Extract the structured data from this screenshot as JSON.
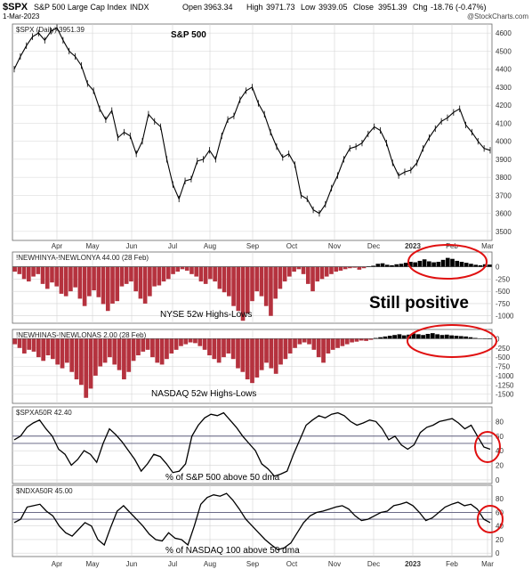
{
  "header": {
    "symbol": "$SPX",
    "description": "S&P 500 Large Cap Index",
    "exchange": "INDX",
    "date": "1-Mar-2023",
    "open_label": "Open",
    "open": "3963.34",
    "high_label": "High",
    "high": "3971.73",
    "low_label": "Low",
    "low": "3939.05",
    "close_label": "Close",
    "close": "3951.39",
    "chg_label": "Chg",
    "chg": "-18.76 (-0.47%)",
    "watermark": "@StockCharts.com"
  },
  "months": [
    "Apr",
    "May",
    "Jun",
    "Jul",
    "Aug",
    "Sep",
    "Oct",
    "Nov",
    "Dec",
    "2023",
    "Feb",
    "Mar"
  ],
  "annotations": {
    "still_positive": "Still positive"
  },
  "colors": {
    "price": "#000000",
    "bar_negative": "#b5323e",
    "bar_positive": "#000000",
    "circle": "#e01010",
    "grid": "#d4d4d4",
    "ref_line": "#5a5a7a"
  },
  "chart_data": [
    {
      "type": "line",
      "legend": "$SPX (Daily) 3951.39",
      "title": "S&P 500",
      "ylim": [
        3450,
        4650
      ],
      "yticks": [
        3500,
        3600,
        3700,
        3800,
        3900,
        4000,
        4100,
        4200,
        4300,
        4400,
        4500,
        4600
      ],
      "series": [
        {
          "values": [
            4400,
            4470,
            4530,
            4580,
            4600,
            4560,
            4610,
            4630,
            4560,
            4500,
            4470,
            4420,
            4320,
            4280,
            4180,
            4120,
            4170,
            4020,
            4050,
            4030,
            3930,
            4000,
            4150,
            4110,
            4080,
            3900,
            3760,
            3680,
            3780,
            3790,
            3890,
            3900,
            3950,
            3900,
            4030,
            4120,
            4140,
            4230,
            4280,
            4300,
            4210,
            4150,
            4050,
            3970,
            3910,
            3930,
            3870,
            3700,
            3680,
            3620,
            3600,
            3650,
            3740,
            3810,
            3900,
            3960,
            3970,
            3990,
            4040,
            4080,
            4060,
            3990,
            3880,
            3810,
            3830,
            3840,
            3880,
            3960,
            4020,
            4070,
            4110,
            4130,
            4160,
            4180,
            4090,
            4050,
            4000,
            3960,
            3950
          ]
        }
      ]
    },
    {
      "type": "bar",
      "legend": "!NEWHINYA-!NEWLONYA 44.00 (28 Feb)",
      "label": "NYSE 52w Highs-Lows",
      "ylim": [
        -1150,
        300
      ],
      "yticks": [
        0,
        -250,
        -500,
        -750,
        -1000
      ],
      "values": [
        -100,
        -150,
        -250,
        -300,
        -200,
        -150,
        -350,
        -450,
        -320,
        -400,
        -550,
        -600,
        -500,
        -420,
        -650,
        -800,
        -600,
        -480,
        -620,
        -760,
        -900,
        -750,
        -700,
        -400,
        -350,
        -300,
        -500,
        -650,
        -750,
        -600,
        -400,
        -380,
        -300,
        -250,
        -150,
        -100,
        -50,
        -80,
        -150,
        -200,
        -300,
        -350,
        -250,
        -300,
        -450,
        -520,
        -600,
        -800,
        -900,
        -1100,
        -950,
        -700,
        -500,
        -600,
        -800,
        -1000,
        -650,
        -450,
        -300,
        -200,
        -100,
        -50,
        -150,
        -350,
        -500,
        -300,
        -250,
        -200,
        -150,
        -100,
        -80,
        -50,
        -30,
        -20,
        -60,
        -30,
        10,
        20,
        60,
        70,
        40,
        30,
        50,
        60,
        80,
        100,
        90,
        120,
        150,
        110,
        90,
        100,
        140,
        180,
        160,
        120,
        100,
        80,
        60,
        40,
        30,
        50,
        44
      ]
    },
    {
      "type": "bar",
      "legend": "!NEWHINAS-!NEWLONAS 2.00 (28 Feb)",
      "label": "NASDAQ 52w Highs-Lows",
      "ylim": [
        -1750,
        250
      ],
      "yticks": [
        0,
        -250,
        -500,
        -750,
        -1000,
        -1250,
        -1500
      ],
      "values": [
        -150,
        -250,
        -400,
        -300,
        -350,
        -500,
        -600,
        -450,
        -550,
        -700,
        -800,
        -650,
        -900,
        -1100,
        -1250,
        -1600,
        -1350,
        -1000,
        -750,
        -650,
        -500,
        -700,
        -850,
        -1100,
        -900,
        -600,
        -450,
        -350,
        -300,
        -500,
        -650,
        -700,
        -550,
        -400,
        -300,
        -200,
        -150,
        -100,
        -120,
        -200,
        -300,
        -450,
        -550,
        -650,
        -500,
        -400,
        -550,
        -800,
        -900,
        -1100,
        -1200,
        -1050,
        -850,
        -650,
        -800,
        -950,
        -700,
        -550,
        -400,
        -250,
        -150,
        -100,
        -150,
        -300,
        -500,
        -650,
        -400,
        -300,
        -250,
        -200,
        -150,
        -100,
        -80,
        -50,
        -60,
        -30,
        20,
        40,
        60,
        80,
        100,
        120,
        90,
        110,
        140,
        120,
        100,
        130,
        150,
        120,
        100,
        110,
        90,
        80,
        70,
        60,
        40,
        20,
        10,
        5,
        2
      ]
    },
    {
      "type": "line",
      "legend": "$SPXA50R 42.40",
      "label": "% of S&P 500 above 50 dma",
      "ylim": [
        -5,
        100
      ],
      "yticks": [
        0,
        20,
        40,
        60,
        80
      ],
      "reference_lines": [
        50,
        60
      ],
      "series": [
        {
          "values": [
            55,
            60,
            72,
            78,
            82,
            70,
            60,
            42,
            35,
            20,
            28,
            40,
            35,
            24,
            50,
            70,
            62,
            52,
            40,
            28,
            12,
            22,
            35,
            32,
            22,
            10,
            12,
            22,
            60,
            75,
            85,
            90,
            88,
            92,
            82,
            72,
            60,
            50,
            40,
            22,
            15,
            5,
            8,
            12,
            35,
            55,
            75,
            82,
            88,
            85,
            90,
            92,
            88,
            80,
            75,
            78,
            82,
            80,
            70,
            55,
            60,
            48,
            42,
            48,
            65,
            72,
            75,
            80,
            82,
            84,
            78,
            70,
            75,
            60,
            45,
            42
          ]
        }
      ]
    },
    {
      "type": "line",
      "legend": "$NDXA50R 45.00",
      "label": "% of NASDAQ 100 above 50 dma",
      "ylim": [
        -5,
        100
      ],
      "yticks": [
        0,
        20,
        40,
        60,
        80
      ],
      "reference_lines": [
        50,
        60
      ],
      "series": [
        {
          "values": [
            45,
            50,
            68,
            70,
            72,
            62,
            55,
            40,
            30,
            25,
            35,
            45,
            40,
            20,
            12,
            38,
            62,
            70,
            60,
            50,
            40,
            28,
            20,
            18,
            30,
            22,
            20,
            12,
            40,
            72,
            82,
            86,
            84,
            88,
            78,
            65,
            50,
            40,
            30,
            20,
            12,
            5,
            8,
            15,
            30,
            45,
            55,
            60,
            62,
            65,
            68,
            70,
            65,
            55,
            48,
            50,
            55,
            60,
            62,
            70,
            72,
            75,
            70,
            60,
            48,
            52,
            60,
            68,
            72,
            75,
            70,
            72,
            65,
            50,
            45
          ]
        }
      ]
    }
  ]
}
